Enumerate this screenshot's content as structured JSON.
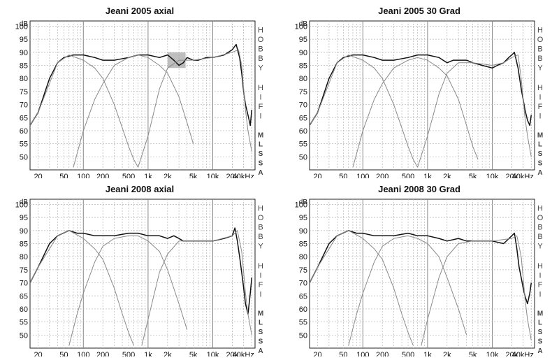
{
  "chart_data": [
    {
      "type": "line",
      "title": "Jeani 2005 axial",
      "ylabel": "dB",
      "y_ticks": [
        "100",
        "95",
        "90",
        "85",
        "80",
        "75",
        "70",
        "65",
        "60",
        "55",
        "50"
      ],
      "x_ticks": [
        "20",
        "50",
        "100",
        "200",
        "500",
        "1k",
        "2k",
        "5k",
        "10k",
        "20k",
        "40kHz"
      ],
      "side_labels": [
        "H",
        "O",
        "B",
        "B",
        "Y",
        "H",
        "I",
        "F",
        "I",
        "M",
        "L",
        "S",
        "S",
        "A"
      ],
      "ylim": [
        45,
        102
      ],
      "xlim": [
        15,
        45000
      ],
      "x_scale": "log",
      "grid": true,
      "highlight": {
        "x_range": [
          2000,
          3800
        ],
        "y_range": [
          84,
          90
        ]
      },
      "series": [
        {
          "role": "sum",
          "x": [
            15,
            20,
            30,
            40,
            50,
            70,
            100,
            150,
            200,
            300,
            500,
            700,
            1000,
            1500,
            2000,
            2500,
            3000,
            3500,
            4000,
            5000,
            6000,
            8000,
            10000,
            15000,
            20000,
            23000,
            26000,
            28000,
            30000,
            32000,
            35000,
            38000,
            40000
          ],
          "y": [
            62,
            67,
            80,
            86,
            88,
            89,
            89,
            88,
            87,
            87,
            88,
            89,
            89,
            88,
            89,
            87,
            85,
            86,
            88,
            87,
            87,
            88,
            88,
            89,
            91,
            93,
            88,
            82,
            75,
            70,
            66,
            62,
            68
          ]
        },
        {
          "role": "woofer",
          "x": [
            15,
            20,
            40,
            60,
            100,
            150,
            200,
            300,
            400,
            500,
            600,
            700
          ],
          "y": [
            62,
            67,
            86,
            89,
            87,
            84,
            80,
            70,
            61,
            54,
            49,
            46
          ]
        },
        {
          "role": "midrange",
          "x": [
            70,
            100,
            150,
            200,
            300,
            500,
            700,
            1000,
            1500,
            2000,
            3000,
            4000,
            5000
          ],
          "y": [
            46,
            60,
            72,
            78,
            85,
            88,
            89,
            88,
            85,
            82,
            73,
            63,
            55
          ]
        },
        {
          "role": "tweeter",
          "x": [
            700,
            1000,
            1500,
            2000,
            3000,
            5000,
            10000,
            20000,
            25000,
            28000,
            30000,
            32000,
            35000,
            40000
          ],
          "y": [
            46,
            58,
            76,
            84,
            87,
            87,
            88,
            90,
            91,
            85,
            76,
            68,
            60,
            52
          ]
        }
      ]
    },
    {
      "type": "line",
      "title": "Jeani 2005 30 Grad",
      "ylabel": "dB",
      "y_ticks": [
        "100",
        "95",
        "90",
        "85",
        "80",
        "75",
        "70",
        "65",
        "60",
        "55",
        "50"
      ],
      "x_ticks": [
        "20",
        "50",
        "100",
        "200",
        "500",
        "1k",
        "2k",
        "5k",
        "10k",
        "20k",
        "40kHz"
      ],
      "side_labels": [
        "H",
        "O",
        "B",
        "B",
        "Y",
        "H",
        "I",
        "F",
        "I",
        "M",
        "L",
        "S",
        "S",
        "A"
      ],
      "ylim": [
        45,
        102
      ],
      "xlim": [
        15,
        45000
      ],
      "x_scale": "log",
      "grid": true,
      "series": [
        {
          "role": "sum",
          "x": [
            15,
            20,
            30,
            40,
            50,
            70,
            100,
            150,
            200,
            300,
            500,
            700,
            1000,
            1500,
            2000,
            2500,
            3000,
            4000,
            5000,
            7000,
            10000,
            12000,
            15000,
            18000,
            20000,
            22000,
            25000,
            28000,
            30000,
            32000,
            35000,
            38000,
            40000
          ],
          "y": [
            62,
            67,
            80,
            86,
            88,
            89,
            89,
            88,
            87,
            87,
            88,
            89,
            89,
            88,
            86,
            87,
            87,
            87,
            86,
            85,
            84,
            85,
            86,
            88,
            89,
            90,
            84,
            76,
            72,
            68,
            64,
            62,
            66
          ]
        },
        {
          "role": "woofer",
          "x": [
            15,
            20,
            40,
            60,
            100,
            150,
            200,
            300,
            400,
            500,
            600,
            700
          ],
          "y": [
            62,
            67,
            86,
            89,
            87,
            84,
            80,
            70,
            61,
            54,
            49,
            46
          ]
        },
        {
          "role": "midrange",
          "x": [
            70,
            100,
            150,
            200,
            300,
            500,
            700,
            1000,
            1500,
            2000,
            3000,
            4000,
            5000,
            6000
          ],
          "y": [
            46,
            60,
            72,
            78,
            84,
            87,
            88,
            87,
            84,
            81,
            72,
            62,
            54,
            49
          ]
        },
        {
          "role": "tweeter",
          "x": [
            700,
            1000,
            1500,
            2000,
            3000,
            5000,
            10000,
            15000,
            20000,
            25000,
            28000,
            30000,
            32000,
            35000,
            40000
          ],
          "y": [
            46,
            58,
            74,
            82,
            86,
            86,
            85,
            86,
            88,
            89,
            80,
            72,
            65,
            58,
            50
          ]
        }
      ]
    },
    {
      "type": "line",
      "title": "Jeani 2008 axial",
      "ylabel": "dB",
      "y_ticks": [
        "100",
        "95",
        "90",
        "85",
        "80",
        "75",
        "70",
        "65",
        "60",
        "55",
        "50"
      ],
      "x_ticks": [
        "20",
        "50",
        "100",
        "200",
        "500",
        "1k",
        "2k",
        "5k",
        "10k",
        "20k",
        "40kHz"
      ],
      "side_labels": [
        "H",
        "O",
        "B",
        "B",
        "Y",
        "H",
        "I",
        "F",
        "I",
        "M",
        "L",
        "S",
        "S",
        "A"
      ],
      "ylim": [
        45,
        102
      ],
      "xlim": [
        15,
        45000
      ],
      "x_scale": "log",
      "grid": true,
      "series": [
        {
          "role": "sum",
          "x": [
            15,
            20,
            30,
            40,
            60,
            80,
            100,
            150,
            200,
            300,
            500,
            700,
            1000,
            1500,
            2000,
            2500,
            3000,
            3500,
            4000,
            5000,
            7000,
            10000,
            15000,
            20000,
            22000,
            24000,
            26000,
            28000,
            30000,
            32000,
            35000,
            38000,
            40000
          ],
          "y": [
            70,
            76,
            85,
            88,
            90,
            89,
            89,
            88,
            88,
            88,
            89,
            89,
            88,
            88,
            87,
            88,
            87,
            86,
            86,
            86,
            86,
            86,
            87,
            88,
            91,
            86,
            80,
            74,
            68,
            62,
            58,
            66,
            72
          ]
        },
        {
          "role": "woofer",
          "x": [
            15,
            20,
            40,
            60,
            100,
            150,
            200,
            300,
            400,
            500,
            600
          ],
          "y": [
            70,
            76,
            88,
            90,
            87,
            83,
            79,
            68,
            58,
            51,
            46
          ]
        },
        {
          "role": "midrange",
          "x": [
            60,
            80,
            100,
            150,
            200,
            300,
            500,
            700,
            1000,
            1500,
            2000,
            3000,
            4000
          ],
          "y": [
            46,
            58,
            66,
            78,
            84,
            87,
            88,
            88,
            86,
            82,
            75,
            62,
            52
          ]
        },
        {
          "role": "tweeter",
          "x": [
            800,
            1000,
            1500,
            2000,
            3000,
            5000,
            10000,
            20000,
            24000,
            28000,
            30000,
            32000,
            35000,
            40000
          ],
          "y": [
            46,
            56,
            74,
            81,
            86,
            86,
            86,
            88,
            90,
            82,
            74,
            66,
            58,
            50
          ]
        }
      ]
    },
    {
      "type": "line",
      "title": "Jeani 2008 30 Grad",
      "ylabel": "dB",
      "y_ticks": [
        "100",
        "95",
        "90",
        "85",
        "80",
        "75",
        "70",
        "65",
        "60",
        "55",
        "50"
      ],
      "x_ticks": [
        "20",
        "50",
        "100",
        "200",
        "500",
        "1k",
        "2k",
        "5k",
        "10k",
        "20k",
        "40kHz"
      ],
      "side_labels": [
        "H",
        "O",
        "B",
        "B",
        "Y",
        "H",
        "I",
        "F",
        "I",
        "M",
        "L",
        "S",
        "S",
        "A"
      ],
      "ylim": [
        45,
        102
      ],
      "xlim": [
        15,
        45000
      ],
      "x_scale": "log",
      "grid": true,
      "series": [
        {
          "role": "sum",
          "x": [
            15,
            20,
            30,
            40,
            60,
            80,
            100,
            150,
            200,
            300,
            500,
            700,
            1000,
            1500,
            2000,
            3000,
            4000,
            5000,
            7000,
            10000,
            15000,
            20000,
            22000,
            24000,
            26000,
            28000,
            30000,
            32000,
            35000,
            38000,
            40000
          ],
          "y": [
            70,
            76,
            85,
            88,
            90,
            89,
            89,
            88,
            88,
            88,
            89,
            88,
            88,
            87,
            86,
            87,
            86,
            86,
            86,
            86,
            85,
            88,
            89,
            83,
            76,
            72,
            68,
            65,
            62,
            66,
            70
          ]
        },
        {
          "role": "woofer",
          "x": [
            15,
            20,
            40,
            60,
            100,
            150,
            200,
            300,
            400,
            500,
            600
          ],
          "y": [
            70,
            76,
            88,
            90,
            87,
            83,
            79,
            68,
            58,
            51,
            46
          ]
        },
        {
          "role": "midrange",
          "x": [
            60,
            80,
            100,
            150,
            200,
            300,
            500,
            700,
            1000,
            1500,
            2000,
            3000,
            4000
          ],
          "y": [
            46,
            58,
            66,
            78,
            84,
            87,
            88,
            87,
            85,
            80,
            72,
            60,
            50
          ]
        },
        {
          "role": "tweeter",
          "x": [
            800,
            1000,
            1500,
            2000,
            3000,
            5000,
            10000,
            20000,
            24000,
            28000,
            30000,
            32000,
            35000,
            40000
          ],
          "y": [
            46,
            56,
            72,
            80,
            85,
            86,
            86,
            87,
            88,
            80,
            72,
            64,
            56,
            48
          ]
        }
      ]
    }
  ]
}
